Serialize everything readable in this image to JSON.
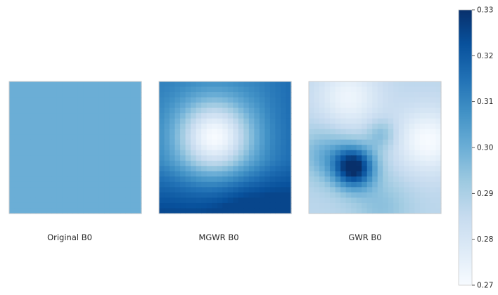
{
  "chart_data": {
    "type": "heatmap",
    "colormap": "Blues",
    "colorbar": {
      "vmin": 0.27,
      "vmax": 0.33,
      "ticks": [
        "0.27",
        "0.28",
        "0.29",
        "0.30",
        "0.31",
        "0.32",
        "0.33"
      ],
      "tick_values": [
        0.27,
        0.28,
        0.29,
        0.3,
        0.31,
        0.32,
        0.33
      ]
    },
    "grid_size": 25,
    "panels": [
      {
        "label": "Original B0",
        "field": "constant",
        "value": 0.3
      },
      {
        "label": "MGWR B0",
        "field": "basin",
        "low": {
          "at": [
            0.42,
            0.42
          ],
          "value": 0.27
        },
        "high": {
          "at": [
            0.7,
            0.98
          ],
          "value": 0.325
        }
      },
      {
        "label": "GWR B0",
        "field": "hotspot",
        "peak": {
          "at": [
            0.34,
            0.65
          ],
          "value": 0.33
        },
        "lows": [
          {
            "at": [
              0.9,
              0.45
            ],
            "value": 0.27
          },
          {
            "at": [
              0.3,
              0.12
            ],
            "value": 0.272
          }
        ]
      }
    ]
  }
}
